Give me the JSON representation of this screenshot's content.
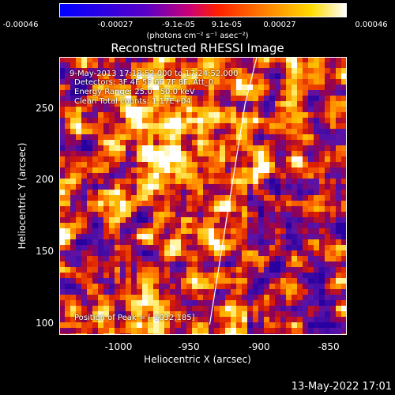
{
  "colorbar": {
    "ticks": [
      "-0.00046",
      "-0.00027",
      "-9.1e-05",
      "9.1e-05",
      "0.00027",
      "0.00046"
    ],
    "unit": "(photons cm⁻² s⁻¹ asec⁻²)"
  },
  "title": "Reconstructed RHESSI Image",
  "annotations": {
    "time": "9-May-2013 17:18:52.000 to 17:24:52.000",
    "detectors": "Detectors: 3F 4F 5F 6F 7F 8F, Att_0",
    "energy": "Energy Range: 25.0 - 50.0 keV",
    "clean": "Clean     Total counts: 1.17E+04",
    "peak": "Position of Peak = [-1032,185]"
  },
  "axes": {
    "xlabel": "Heliocentric X (arcsec)",
    "ylabel": "Heliocentric Y (arcsec)",
    "xticks": [
      "-1000",
      "-950",
      "-900",
      "-850"
    ],
    "yticks": [
      "250",
      "200",
      "150",
      "100"
    ]
  },
  "footer": "13-May-2022 17:01",
  "colors": {
    "low": "#0000ff",
    "mid": "#ff0000",
    "high": "#ffffff"
  },
  "chart_data": {
    "type": "heatmap",
    "title": "Reconstructed RHESSI Image",
    "xlabel": "Heliocentric X (arcsec)",
    "ylabel": "Heliocentric Y (arcsec)",
    "xlim": [
      -1045,
      -850
    ],
    "ylim": [
      93,
      282
    ],
    "clim": [
      -0.00046,
      0.00046
    ],
    "peak": [
      -1032,
      185
    ],
    "limb_curve": {
      "x": [
        -943,
        -935,
        -927,
        -919,
        -911
      ],
      "y": [
        100,
        150,
        200,
        250,
        282
      ]
    }
  }
}
